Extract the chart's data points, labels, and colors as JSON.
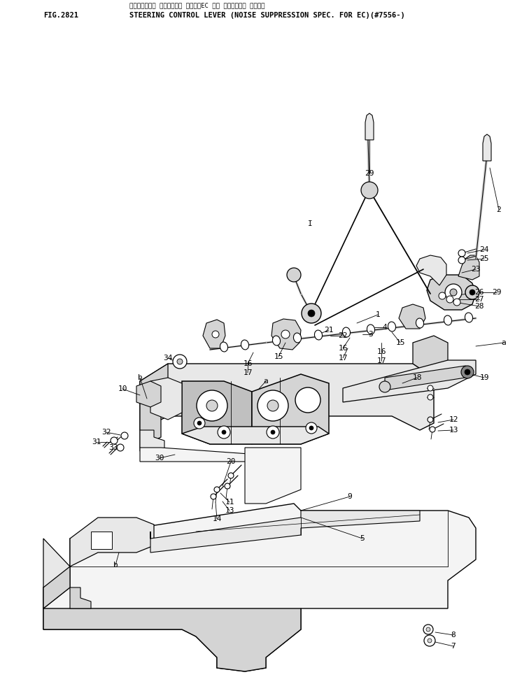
{
  "title_line1": "ステアリング・ コントロール レバー（EC ムコ テイソウオン ショウ）",
  "title_line2": "STEERING CONTROL LEVER (NOISE SUPPRESSION SPEC. FOR EC)(#7556-)",
  "fig_label": "FIG.2821",
  "bg_color": "#ffffff",
  "lc": "#000000",
  "gray1": "#e8e8e8",
  "gray2": "#d4d4d4",
  "gray3": "#c0c0c0",
  "gray4": "#f4f4f4"
}
